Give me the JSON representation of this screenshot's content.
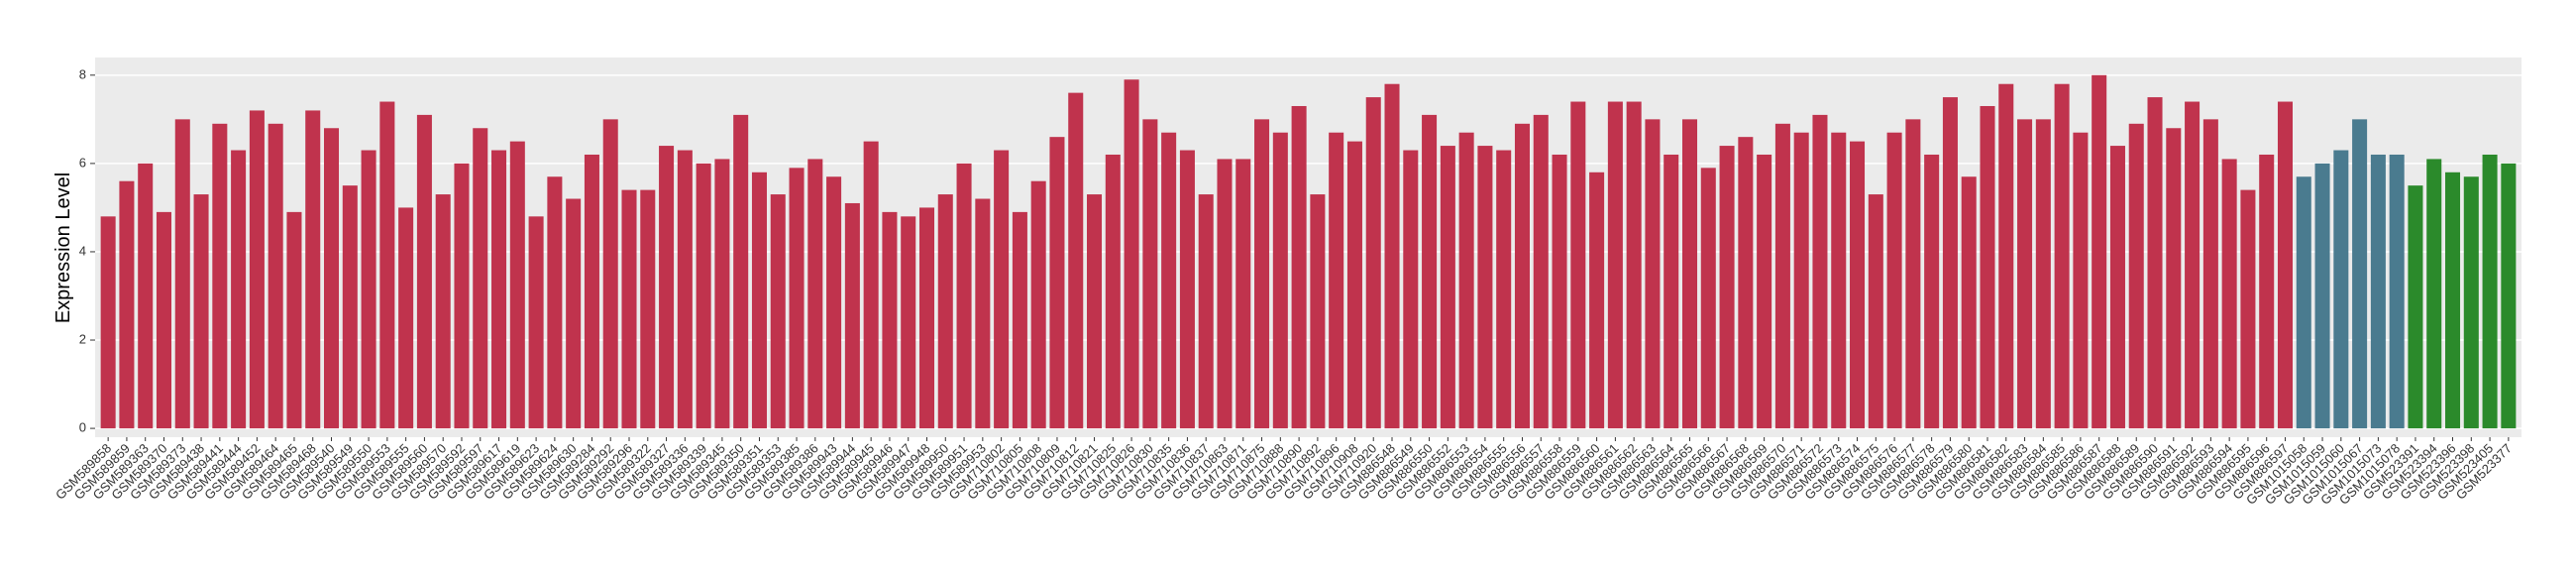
{
  "chart_data": {
    "type": "bar",
    "y_label": "Expression Level",
    "ylim": [
      -0.2,
      8.4
    ],
    "yticks": [
      0,
      2,
      4,
      6,
      8
    ],
    "grid": true,
    "series": [
      {
        "color": "#c0334d",
        "categories": [
          "GSM589858",
          "GSM589859",
          "GSM589363",
          "GSM589370",
          "GSM589373",
          "GSM589438",
          "GSM589441",
          "GSM589444",
          "GSM589452",
          "GSM589464",
          "GSM589465",
          "GSM589468",
          "GSM589540",
          "GSM589549",
          "GSM589550",
          "GSM589553",
          "GSM589555",
          "GSM589560",
          "GSM589570",
          "GSM589592",
          "GSM589597",
          "GSM589617",
          "GSM589619",
          "GSM589623",
          "GSM589624",
          "GSM589630",
          "GSM589284",
          "GSM589292",
          "GSM589296",
          "GSM589322",
          "GSM589327",
          "GSM589336",
          "GSM589339",
          "GSM589345",
          "GSM589350",
          "GSM589351",
          "GSM589353",
          "GSM589385",
          "GSM589386",
          "GSM589943",
          "GSM589944",
          "GSM589945",
          "GSM589946",
          "GSM589947",
          "GSM589948",
          "GSM589950",
          "GSM589951",
          "GSM589953",
          "GSM710802",
          "GSM710805",
          "GSM710808",
          "GSM710809",
          "GSM710812",
          "GSM710821",
          "GSM710825",
          "GSM710826",
          "GSM710830",
          "GSM710835",
          "GSM710836",
          "GSM710837",
          "GSM710863",
          "GSM710871",
          "GSM710875",
          "GSM710888",
          "GSM710890",
          "GSM710892",
          "GSM710896",
          "GSM710908",
          "GSM710920",
          "GSM886548",
          "GSM886549",
          "GSM886550",
          "GSM886552",
          "GSM886553",
          "GSM886554",
          "GSM886555",
          "GSM886556",
          "GSM886557",
          "GSM886558",
          "GSM886559",
          "GSM886560",
          "GSM886561",
          "GSM886562",
          "GSM886563",
          "GSM886564",
          "GSM886565",
          "GSM886566",
          "GSM886567",
          "GSM886568",
          "GSM886569",
          "GSM886570",
          "GSM886571",
          "GSM886572",
          "GSM886573",
          "GSM886574",
          "GSM886575",
          "GSM886576",
          "GSM886577",
          "GSM886578",
          "GSM886579",
          "GSM886580",
          "GSM886581",
          "GSM886582",
          "GSM886583",
          "GSM886584",
          "GSM886585",
          "GSM886586",
          "GSM886587",
          "GSM886588",
          "GSM886589",
          "GSM886590",
          "GSM886591",
          "GSM886592",
          "GSM886593",
          "GSM886594",
          "GSM886595",
          "GSM886596",
          "GSM886597"
        ],
        "values": [
          4.8,
          5.6,
          6.0,
          4.9,
          7.0,
          5.3,
          6.9,
          6.3,
          7.2,
          6.9,
          4.9,
          7.2,
          6.8,
          5.5,
          6.3,
          7.4,
          5.0,
          7.1,
          5.3,
          6.0,
          6.8,
          6.3,
          6.5,
          4.8,
          5.7,
          5.2,
          6.2,
          7.0,
          5.4,
          5.4,
          6.4,
          6.3,
          6.0,
          6.1,
          7.1,
          5.8,
          5.3,
          5.9,
          6.1,
          5.7,
          5.1,
          6.5,
          4.9,
          4.8,
          5.0,
          5.3,
          6.0,
          5.2,
          6.3,
          4.9,
          5.6,
          6.6,
          7.6,
          5.3,
          6.2,
          7.9,
          7.0,
          6.7,
          6.3,
          5.3,
          6.1,
          6.1,
          7.0,
          6.7,
          7.3,
          5.3,
          6.7,
          6.5,
          7.5,
          7.8,
          6.3,
          7.1,
          6.4,
          6.7,
          6.4,
          6.3,
          6.9,
          7.1,
          6.2,
          7.4,
          5.8,
          7.4,
          7.4,
          7.0,
          6.2,
          7.0,
          5.9,
          6.4,
          6.6,
          6.2,
          6.9,
          6.7,
          7.1,
          6.7,
          6.5,
          5.3,
          6.7,
          7.0,
          6.2,
          7.5,
          5.7,
          7.3,
          7.8,
          7.0,
          7.0,
          7.8,
          6.7,
          8.0,
          6.4,
          6.9,
          7.5,
          6.8,
          7.4,
          7.0,
          6.1,
          5.4,
          6.2,
          7.4
        ]
      },
      {
        "color": "#4a7b8f",
        "categories": [
          "GSM1015058",
          "GSM1015059",
          "GSM1015060",
          "GSM1015067",
          "GSM1015073",
          "GSM1015078"
        ],
        "values": [
          5.7,
          6.0,
          6.3,
          7.0,
          6.2,
          6.2
        ]
      },
      {
        "color": "#2b8a2b",
        "categories": [
          "GSM523391",
          "GSM523394",
          "GSM523396",
          "GSM523398",
          "GSM523405",
          "GSM523377"
        ],
        "values": [
          5.5,
          6.1,
          5.8,
          5.7,
          6.2,
          6.0
        ]
      }
    ]
  }
}
